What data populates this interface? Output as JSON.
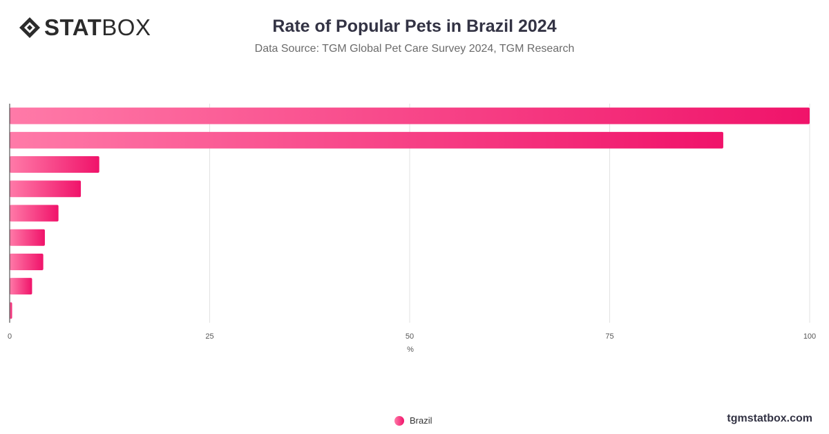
{
  "brand": {
    "logo_bold": "STAT",
    "logo_light": "BOX",
    "site": "tgmstatbox.com"
  },
  "header": {
    "title": "Rate of Popular Pets in Brazil 2024",
    "subtitle": "Data Source: TGM Global Pet Care Survey 2024, TGM Research"
  },
  "chart_data": {
    "type": "bar",
    "orientation": "horizontal",
    "title": "Rate of Popular Pets in Brazil 2024",
    "subtitle": "Data Source: TGM Global Pet Care Survey 2024, TGM Research",
    "xlabel": "%",
    "ylabel": "",
    "xlim": [
      0,
      100
    ],
    "xticks": [
      "0",
      "25",
      "50",
      "75",
      "100"
    ],
    "grid": true,
    "legend_position": "bottom-center",
    "series": [
      {
        "name": "Brazil",
        "values": [
          100,
          89.2,
          11.2,
          8.9,
          6.1,
          4.4,
          4.2,
          2.8,
          0.3
        ]
      }
    ]
  },
  "legend": {
    "items": [
      "Brazil"
    ]
  },
  "colors": {
    "bar_start": "#ff7aa8",
    "bar_end": "#f0136a",
    "grid": "#e2e2e2",
    "axis": "#333333",
    "text": "#333344"
  }
}
